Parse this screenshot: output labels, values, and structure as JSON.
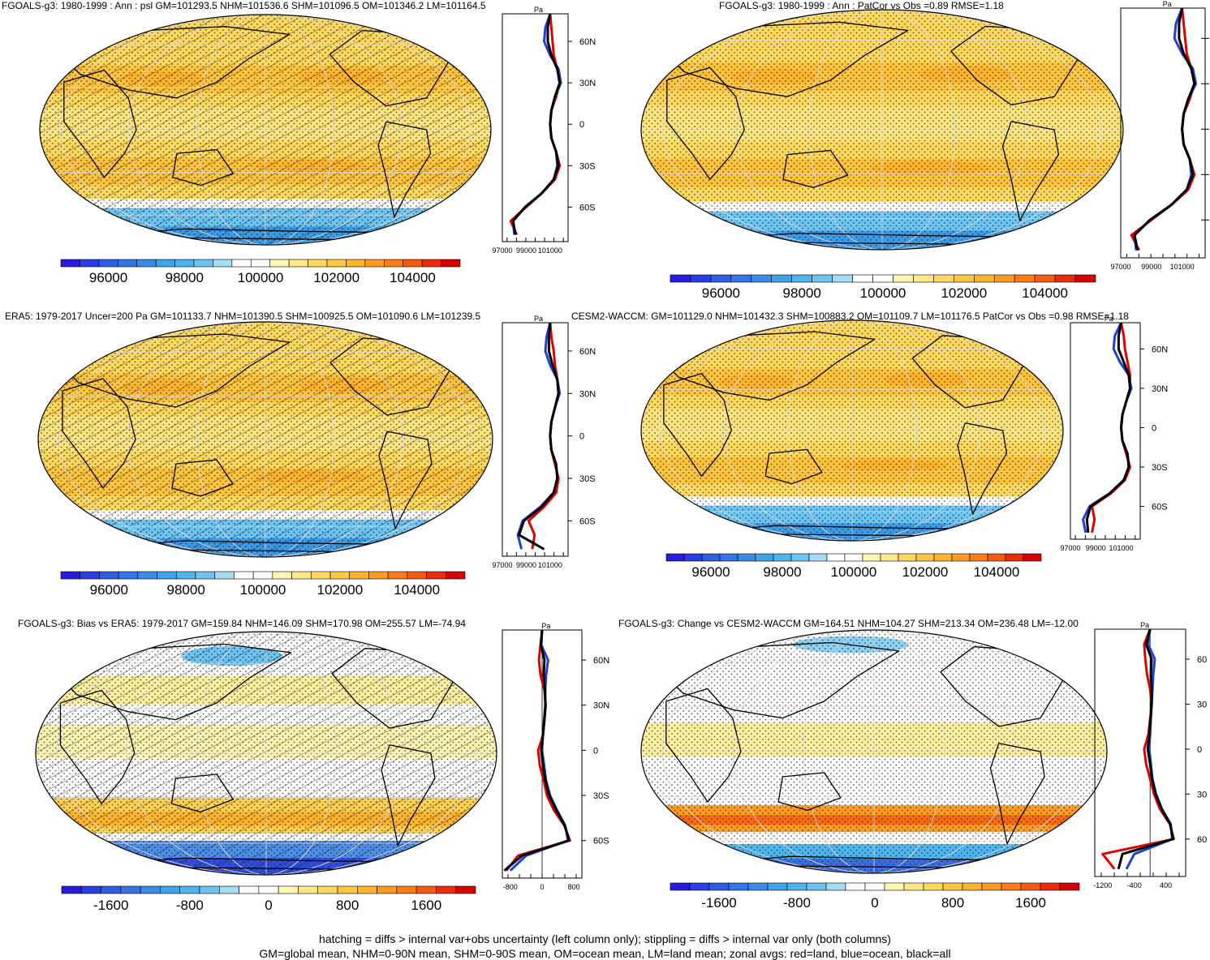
{
  "chart_data": [
    {
      "type": "heatmap",
      "panel": "top-left",
      "title": "FGOALS-g3: 1980-1999 : Ann : psl GM=101293.5 NHM=101536.6 SHM=101096.5 OM=101346.2 LM=101164.5",
      "map_projection": "Robinson, Pacific-centered",
      "overlay": "hatching and stippling",
      "zonal_unit": "Pa",
      "zonal_lat_ticks": [
        "60N",
        "30N",
        "0",
        "30S",
        "60S"
      ],
      "zonal_x_ticks": [
        "97000",
        "99000",
        "101000"
      ],
      "zonal_xlim": [
        97000,
        102500
      ],
      "zonal_series": [
        {
          "name": "land",
          "color": "#e00000",
          "lat": [
            80,
            70,
            60,
            50,
            40,
            30,
            20,
            10,
            0,
            -10,
            -20,
            -30,
            -40,
            -50,
            -60,
            -70,
            -80
          ],
          "values": [
            101000,
            101100,
            101200,
            101300,
            101600,
            101800,
            101500,
            101100,
            101000,
            101100,
            101500,
            101800,
            101400,
            100300,
            99000,
            97700,
            98200
          ]
        },
        {
          "name": "ocean",
          "color": "#1f3fd6",
          "lat": [
            80,
            70,
            60,
            50,
            40,
            30,
            20,
            10,
            0,
            -10,
            -20,
            -30,
            -40,
            -50,
            -60,
            -70,
            -80
          ],
          "values": [
            101000,
            100600,
            100500,
            101000,
            101700,
            101900,
            101400,
            101100,
            101000,
            101100,
            101500,
            101600,
            101300,
            100300,
            98900,
            97900,
            98000
          ]
        },
        {
          "name": "all",
          "color": "#000000",
          "lat": [
            80,
            70,
            60,
            50,
            40,
            30,
            20,
            10,
            0,
            -10,
            -20,
            -30,
            -40,
            -50,
            -60,
            -70,
            -80
          ],
          "values": [
            101000,
            100800,
            100800,
            101100,
            101600,
            101800,
            101400,
            101100,
            101000,
            101100,
            101500,
            101700,
            101300,
            100300,
            98900,
            97900,
            98100
          ]
        }
      ],
      "colorbar_ticks": [
        "96000",
        "98000",
        "100000",
        "102000",
        "104000"
      ]
    },
    {
      "type": "heatmap",
      "panel": "top-right",
      "title": "FGOALS-g3: 1980-1999 : Ann : PatCor vs Obs =0.89 RMSE=1.18",
      "map_projection": "Robinson, Pacific-centered",
      "overlay": "stippling",
      "zonal_unit": "Pa",
      "zonal_lat_ticks": [],
      "zonal_x_ticks": [
        "97000",
        "99000",
        "101000"
      ],
      "zonal_xlim": [
        97000,
        102500
      ],
      "zonal_series": [
        {
          "name": "land",
          "color": "#e00000",
          "lat": [
            80,
            70,
            60,
            50,
            40,
            30,
            20,
            10,
            0,
            -10,
            -20,
            -30,
            -40,
            -50,
            -60,
            -70,
            -80
          ],
          "values": [
            101000,
            101100,
            101200,
            101300,
            101600,
            101800,
            101500,
            101100,
            101000,
            101100,
            101500,
            101800,
            101400,
            100300,
            99000,
            97700,
            98200
          ]
        },
        {
          "name": "ocean",
          "color": "#1f3fd6",
          "lat": [
            80,
            70,
            60,
            50,
            40,
            30,
            20,
            10,
            0,
            -10,
            -20,
            -30,
            -40,
            -50,
            -60,
            -70,
            -80
          ],
          "values": [
            101000,
            100600,
            100500,
            101000,
            101700,
            101900,
            101400,
            101100,
            101000,
            101100,
            101500,
            101600,
            101300,
            100300,
            98900,
            97900,
            98000
          ]
        },
        {
          "name": "all",
          "color": "#000000",
          "lat": [
            80,
            70,
            60,
            50,
            40,
            30,
            20,
            10,
            0,
            -10,
            -20,
            -30,
            -40,
            -50,
            -60,
            -70,
            -80
          ],
          "values": [
            101000,
            100800,
            100800,
            101100,
            101600,
            101800,
            101400,
            101100,
            101000,
            101100,
            101500,
            101700,
            101300,
            100300,
            98900,
            97900,
            98100
          ]
        }
      ],
      "colorbar_ticks": [
        "96000",
        "98000",
        "100000",
        "102000",
        "104000"
      ]
    },
    {
      "type": "heatmap",
      "panel": "middle-left",
      "title": "ERA5: 1979-2017 Uncer=200 Pa GM=101133.7 NHM=101390.5 SHM=100925.5 OM=101090.6 LM=101239.5",
      "map_projection": "Robinson, Pacific-centered",
      "overlay": "hatching and stippling",
      "zonal_unit": "Pa",
      "zonal_lat_ticks": [
        "60N",
        "30N",
        "0",
        "30S",
        "60S"
      ],
      "zonal_x_ticks": [
        "97000",
        "99000",
        "101000"
      ],
      "zonal_xlim": [
        97000,
        102500
      ],
      "zonal_series": [
        {
          "name": "land",
          "color": "#e00000",
          "lat": [
            80,
            70,
            60,
            50,
            40,
            30,
            20,
            10,
            0,
            -10,
            -20,
            -30,
            -40,
            -50,
            -60,
            -70,
            -80
          ],
          "values": [
            101000,
            101100,
            101300,
            101400,
            101600,
            101700,
            101400,
            101100,
            101000,
            101100,
            101400,
            101700,
            101500,
            100500,
            99200,
            99700,
            99500
          ]
        },
        {
          "name": "ocean",
          "color": "#1f3fd6",
          "lat": [
            80,
            70,
            60,
            50,
            40,
            30,
            20,
            10,
            0,
            -10,
            -20,
            -30,
            -40,
            -50,
            -60,
            -70,
            -80
          ],
          "values": [
            101000,
            100700,
            100600,
            101000,
            101600,
            101800,
            101400,
            101100,
            101000,
            101100,
            101500,
            101600,
            101300,
            100200,
            98700,
            98300,
            98600
          ]
        },
        {
          "name": "all",
          "color": "#000000",
          "lat": [
            80,
            70,
            60,
            50,
            40,
            30,
            20,
            10,
            0,
            -10,
            -20,
            -30,
            -40,
            -50,
            -60,
            -70,
            -80
          ],
          "values": [
            101000,
            100900,
            100900,
            101200,
            101600,
            101700,
            101400,
            101100,
            101000,
            101100,
            101500,
            101600,
            101300,
            100300,
            98800,
            98400,
            100500
          ]
        }
      ],
      "colorbar_ticks": [
        "96000",
        "98000",
        "100000",
        "102000",
        "104000"
      ]
    },
    {
      "type": "heatmap",
      "panel": "middle-right",
      "title": "CESM2-WACCM: GM=101129.0 NHM=101432.3 SHM=100883.2 OM=101109.7 LM=101176.5 PatCor vs Obs =0.98 RMSE=1.18",
      "map_projection": "Robinson, Pacific-centered",
      "overlay": "stippling",
      "zonal_unit": "Pa",
      "zonal_lat_ticks": [
        "60N",
        "30N",
        "0",
        "30S",
        "60S"
      ],
      "zonal_x_ticks": [
        "97000",
        "99000",
        "101000"
      ],
      "zonal_xlim": [
        97000,
        102500
      ],
      "zonal_series": [
        {
          "name": "land",
          "color": "#e00000",
          "lat": [
            80,
            70,
            60,
            50,
            40,
            30,
            20,
            10,
            0,
            -10,
            -20,
            -30,
            -40,
            -50,
            -60,
            -70,
            -80
          ],
          "values": [
            101000,
            101200,
            101300,
            101500,
            101700,
            101700,
            101400,
            101100,
            101000,
            101100,
            101400,
            101700,
            101300,
            100200,
            98700,
            98900,
            98700
          ]
        },
        {
          "name": "ocean",
          "color": "#1f3fd6",
          "lat": [
            80,
            70,
            60,
            50,
            40,
            30,
            20,
            10,
            0,
            -10,
            -20,
            -30,
            -40,
            -50,
            -60,
            -70,
            -80
          ],
          "values": [
            101000,
            100500,
            100400,
            100900,
            101600,
            101800,
            101400,
            101100,
            101000,
            101100,
            101500,
            101600,
            101200,
            100100,
            98500,
            98000,
            98200
          ]
        },
        {
          "name": "all",
          "color": "#000000",
          "lat": [
            80,
            70,
            60,
            50,
            40,
            30,
            20,
            10,
            0,
            -10,
            -20,
            -30,
            -40,
            -50,
            -60,
            -70,
            -80
          ],
          "values": [
            101000,
            100800,
            100800,
            101200,
            101600,
            101700,
            101400,
            101100,
            101000,
            101100,
            101500,
            101600,
            101200,
            100100,
            98600,
            98300,
            98400
          ]
        }
      ],
      "colorbar_ticks": [
        "96000",
        "98000",
        "100000",
        "102000",
        "104000"
      ]
    },
    {
      "type": "heatmap",
      "panel": "bottom-left",
      "title": "FGOALS-g3: Bias vs ERA5: 1979-2017 GM=159.84 NHM=146.09 SHM=170.98 OM=255.57 LM=-74.94",
      "map_projection": "Robinson, Pacific-centered",
      "overlay": "hatching and stippling",
      "zonal_unit": "Pa",
      "zonal_lat_ticks": [
        "60N",
        "30N",
        "0",
        "30S",
        "60S"
      ],
      "zonal_x_ticks": [
        "-800",
        "0",
        "800"
      ],
      "zonal_xlim": [
        -1000,
        1000
      ],
      "zonal_series": [
        {
          "name": "land",
          "color": "#e00000",
          "lat": [
            80,
            70,
            60,
            50,
            40,
            30,
            20,
            10,
            0,
            -10,
            -20,
            -30,
            -40,
            -50,
            -60,
            -70,
            -80
          ],
          "values": [
            0,
            -40,
            -80,
            -40,
            60,
            90,
            60,
            20,
            -100,
            -60,
            40,
            120,
            300,
            560,
            700,
            -600,
            -900
          ]
        },
        {
          "name": "ocean",
          "color": "#1f3fd6",
          "lat": [
            80,
            70,
            60,
            50,
            40,
            30,
            20,
            10,
            0,
            -10,
            -20,
            -30,
            -40,
            -50,
            -60,
            -70,
            -80
          ],
          "values": [
            0,
            -20,
            150,
            100,
            80,
            80,
            50,
            20,
            0,
            50,
            100,
            200,
            380,
            580,
            650,
            -400,
            -800
          ]
        },
        {
          "name": "all",
          "color": "#000000",
          "lat": [
            80,
            70,
            60,
            50,
            40,
            30,
            20,
            10,
            0,
            -10,
            -20,
            -30,
            -40,
            -50,
            -60,
            -70,
            -80
          ],
          "values": [
            0,
            -30,
            60,
            40,
            70,
            85,
            55,
            20,
            -20,
            20,
            80,
            180,
            360,
            570,
            680,
            -500,
            -950
          ]
        }
      ],
      "colorbar_ticks": [
        "-1600",
        "-800",
        "0",
        "800",
        "1600"
      ]
    },
    {
      "type": "heatmap",
      "panel": "bottom-right",
      "title": "FGOALS-g3: Change vs CESM2-WACCM GM=164.51 NHM=104.27 SHM=213.34 OM=236.48 LM=-12.00",
      "map_projection": "Robinson, Pacific-centered",
      "overlay": "stippling",
      "zonal_unit": "Pa",
      "zonal_lat_ticks": [
        "60",
        "30",
        "0",
        "30",
        "60"
      ],
      "zonal_x_ticks": [
        "-1200",
        "-400",
        "400"
      ],
      "zonal_xlim": [
        -1400,
        900
      ],
      "zonal_series": [
        {
          "name": "land",
          "color": "#e00000",
          "lat": [
            80,
            70,
            60,
            50,
            40,
            30,
            20,
            10,
            0,
            -10,
            -20,
            -30,
            -40,
            -50,
            -60,
            -70,
            -80
          ],
          "values": [
            0,
            -150,
            -120,
            -80,
            0,
            40,
            0,
            -40,
            -150,
            -100,
            0,
            100,
            250,
            500,
            600,
            -1200,
            -900
          ]
        },
        {
          "name": "ocean",
          "color": "#1f3fd6",
          "lat": [
            80,
            70,
            60,
            50,
            40,
            30,
            20,
            10,
            0,
            -10,
            -20,
            -30,
            -40,
            -50,
            -60,
            -70,
            -80
          ],
          "values": [
            0,
            -50,
            120,
            80,
            60,
            40,
            20,
            0,
            -20,
            20,
            60,
            150,
            300,
            520,
            560,
            -400,
            -600
          ]
        },
        {
          "name": "all",
          "color": "#000000",
          "lat": [
            80,
            70,
            60,
            50,
            40,
            30,
            20,
            10,
            0,
            -10,
            -20,
            -30,
            -40,
            -50,
            -60,
            -70,
            -80
          ],
          "values": [
            0,
            -100,
            40,
            20,
            40,
            40,
            10,
            -20,
            -60,
            0,
            50,
            140,
            290,
            510,
            580,
            -700,
            -800
          ]
        }
      ],
      "colorbar_ticks": [
        "-1600",
        "-800",
        "0",
        "800",
        "1600"
      ]
    }
  ],
  "footer": {
    "line1": "hatching = diffs > internal var+obs uncertainty (left column only); stippling = diffs > internal var only (both columns)",
    "line2": "GM=global mean, NHM=0-90N mean, SHM=0-90S mean, OM=ocean mean, LM=land mean; zonal avgs: red=land, blue=ocean, black=all"
  },
  "palettes": {
    "abs": [
      "#2a1be0",
      "#2a3ee8",
      "#2e5ee8",
      "#3476e8",
      "#3a8ce8",
      "#40a4ea",
      "#4cb4ee",
      "#6cc4f2",
      "#a4dcf6",
      "#ffffff",
      "#ffffff",
      "#fff6b4",
      "#ffe888",
      "#ffd860",
      "#ffc840",
      "#ffb42c",
      "#ff9c20",
      "#ff7c14",
      "#f85a0c",
      "#ec2c08",
      "#d80000"
    ],
    "diff": [
      "#2a1be0",
      "#2a3ee8",
      "#2e5ee8",
      "#3476e8",
      "#3a8ce8",
      "#40a4ea",
      "#4cb4ee",
      "#6cc4f2",
      "#a4dcf6",
      "#ffffff",
      "#ffffff",
      "#fff6b4",
      "#ffe888",
      "#ffd860",
      "#ffc840",
      "#ffb42c",
      "#ff9c20",
      "#ff7c14",
      "#f85a0c",
      "#ec2c08",
      "#d80000"
    ]
  }
}
